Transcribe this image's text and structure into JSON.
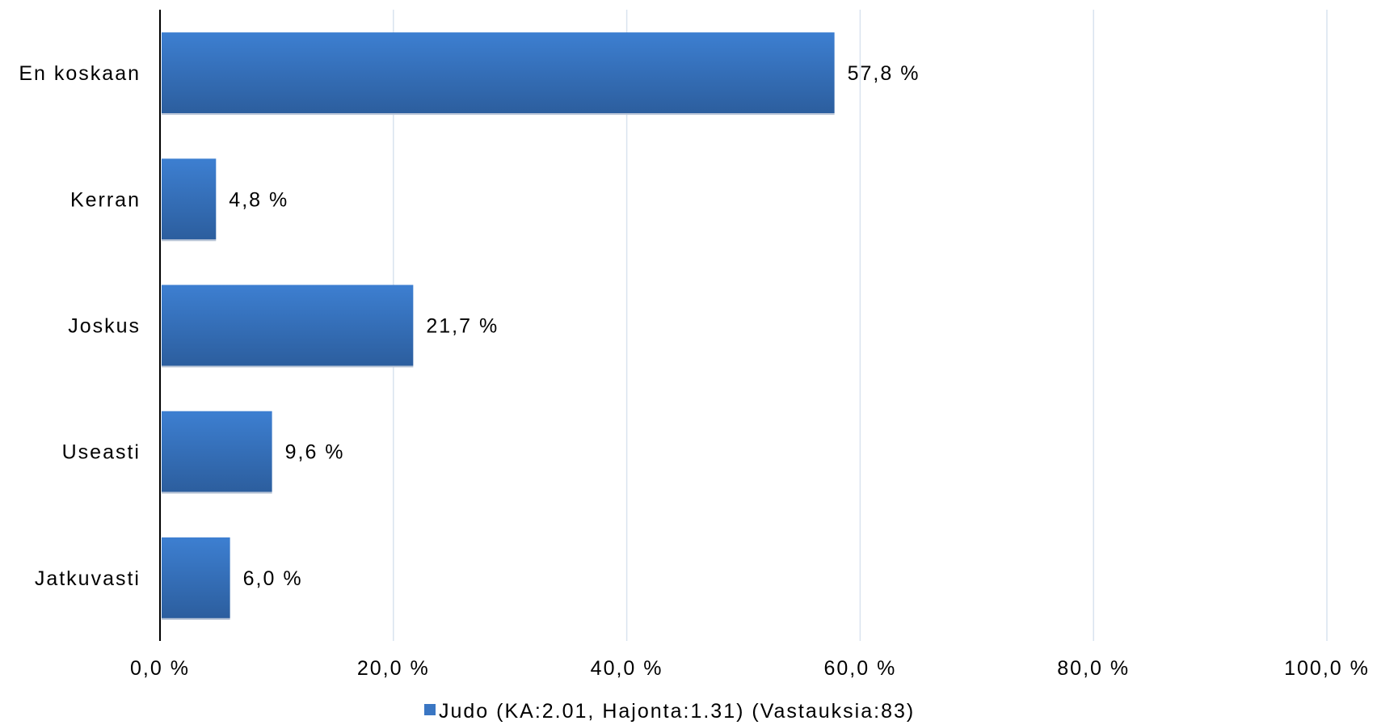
{
  "chart_data": {
    "type": "bar",
    "orientation": "horizontal",
    "categories": [
      "En koskaan",
      "Kerran",
      "Joskus",
      "Useasti",
      "Jatkuvasti"
    ],
    "series": [
      {
        "name": "Judo (KA:2.01, Hajonta:1.31) (Vastauksia:83)",
        "values": [
          57.8,
          4.8,
          21.7,
          9.6,
          6.0
        ],
        "data_labels": [
          "57,8 %",
          "4,8 %",
          "21,7 %",
          "9,6 %",
          "6,0 %"
        ],
        "color": "#3a76c3"
      }
    ],
    "xlim": [
      0,
      100
    ],
    "x_ticks": [
      0,
      20,
      40,
      60,
      80,
      100
    ],
    "x_tick_labels": [
      "0,0 %",
      "20,0 %",
      "40,0 %",
      "60,0 %",
      "80,0 %",
      "100,0 %"
    ],
    "title": "",
    "xlabel": "",
    "ylabel": "",
    "grid": true,
    "legend_position": "bottom"
  }
}
